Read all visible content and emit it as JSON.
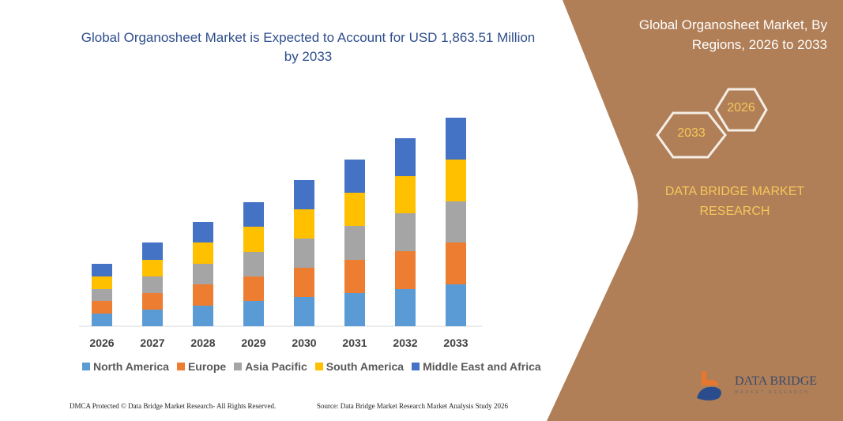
{
  "chart_data": {
    "type": "bar",
    "stacked": true,
    "title": "Global Organosheet Market is Expected to Account for USD 1,863.51 Million by 2033",
    "categories": [
      "2026",
      "2027",
      "2028",
      "2029",
      "2030",
      "2031",
      "2032",
      "2033"
    ],
    "series": [
      {
        "name": "North America",
        "color": "#5B9BD5",
        "values": [
          16,
          21,
          26,
          32,
          37,
          42,
          47,
          53
        ]
      },
      {
        "name": "Europe",
        "color": "#ED7D31",
        "values": [
          16,
          21,
          27,
          31,
          37,
          42,
          48,
          53
        ]
      },
      {
        "name": "Asia Pacific",
        "color": "#A5A5A5",
        "values": [
          15,
          21,
          26,
          31,
          37,
          43,
          48,
          52
        ]
      },
      {
        "name": "South America",
        "color": "#FFC000",
        "values": [
          16,
          21,
          27,
          32,
          37,
          42,
          47,
          53
        ]
      },
      {
        "name": "Middle East and Africa",
        "color": "#4472C4",
        "values": [
          16,
          22,
          26,
          31,
          37,
          42,
          48,
          53
        ]
      }
    ],
    "ylim": [
      0,
      265
    ],
    "grid": false,
    "y_axis_shown": false,
    "legend": "bottom",
    "xlabel": "",
    "ylabel": ""
  },
  "side_panel": {
    "title": "Global Organosheet Market, By Regions, 2026 to 2033",
    "hex_start": "2026",
    "hex_end": "2033",
    "brand": "DATA BRIDGE MARKET RESEARCH",
    "panel_color": "#B07F57"
  },
  "logo": {
    "name": "DATA BRIDGE",
    "sub": "MARKET RESEARCH"
  },
  "footer": {
    "left": "DMCA Protected © Data Bridge Market Research-  All Rights Reserved.",
    "right": "Source: Data Bridge Market Research  Market Analysis Study 2026"
  }
}
